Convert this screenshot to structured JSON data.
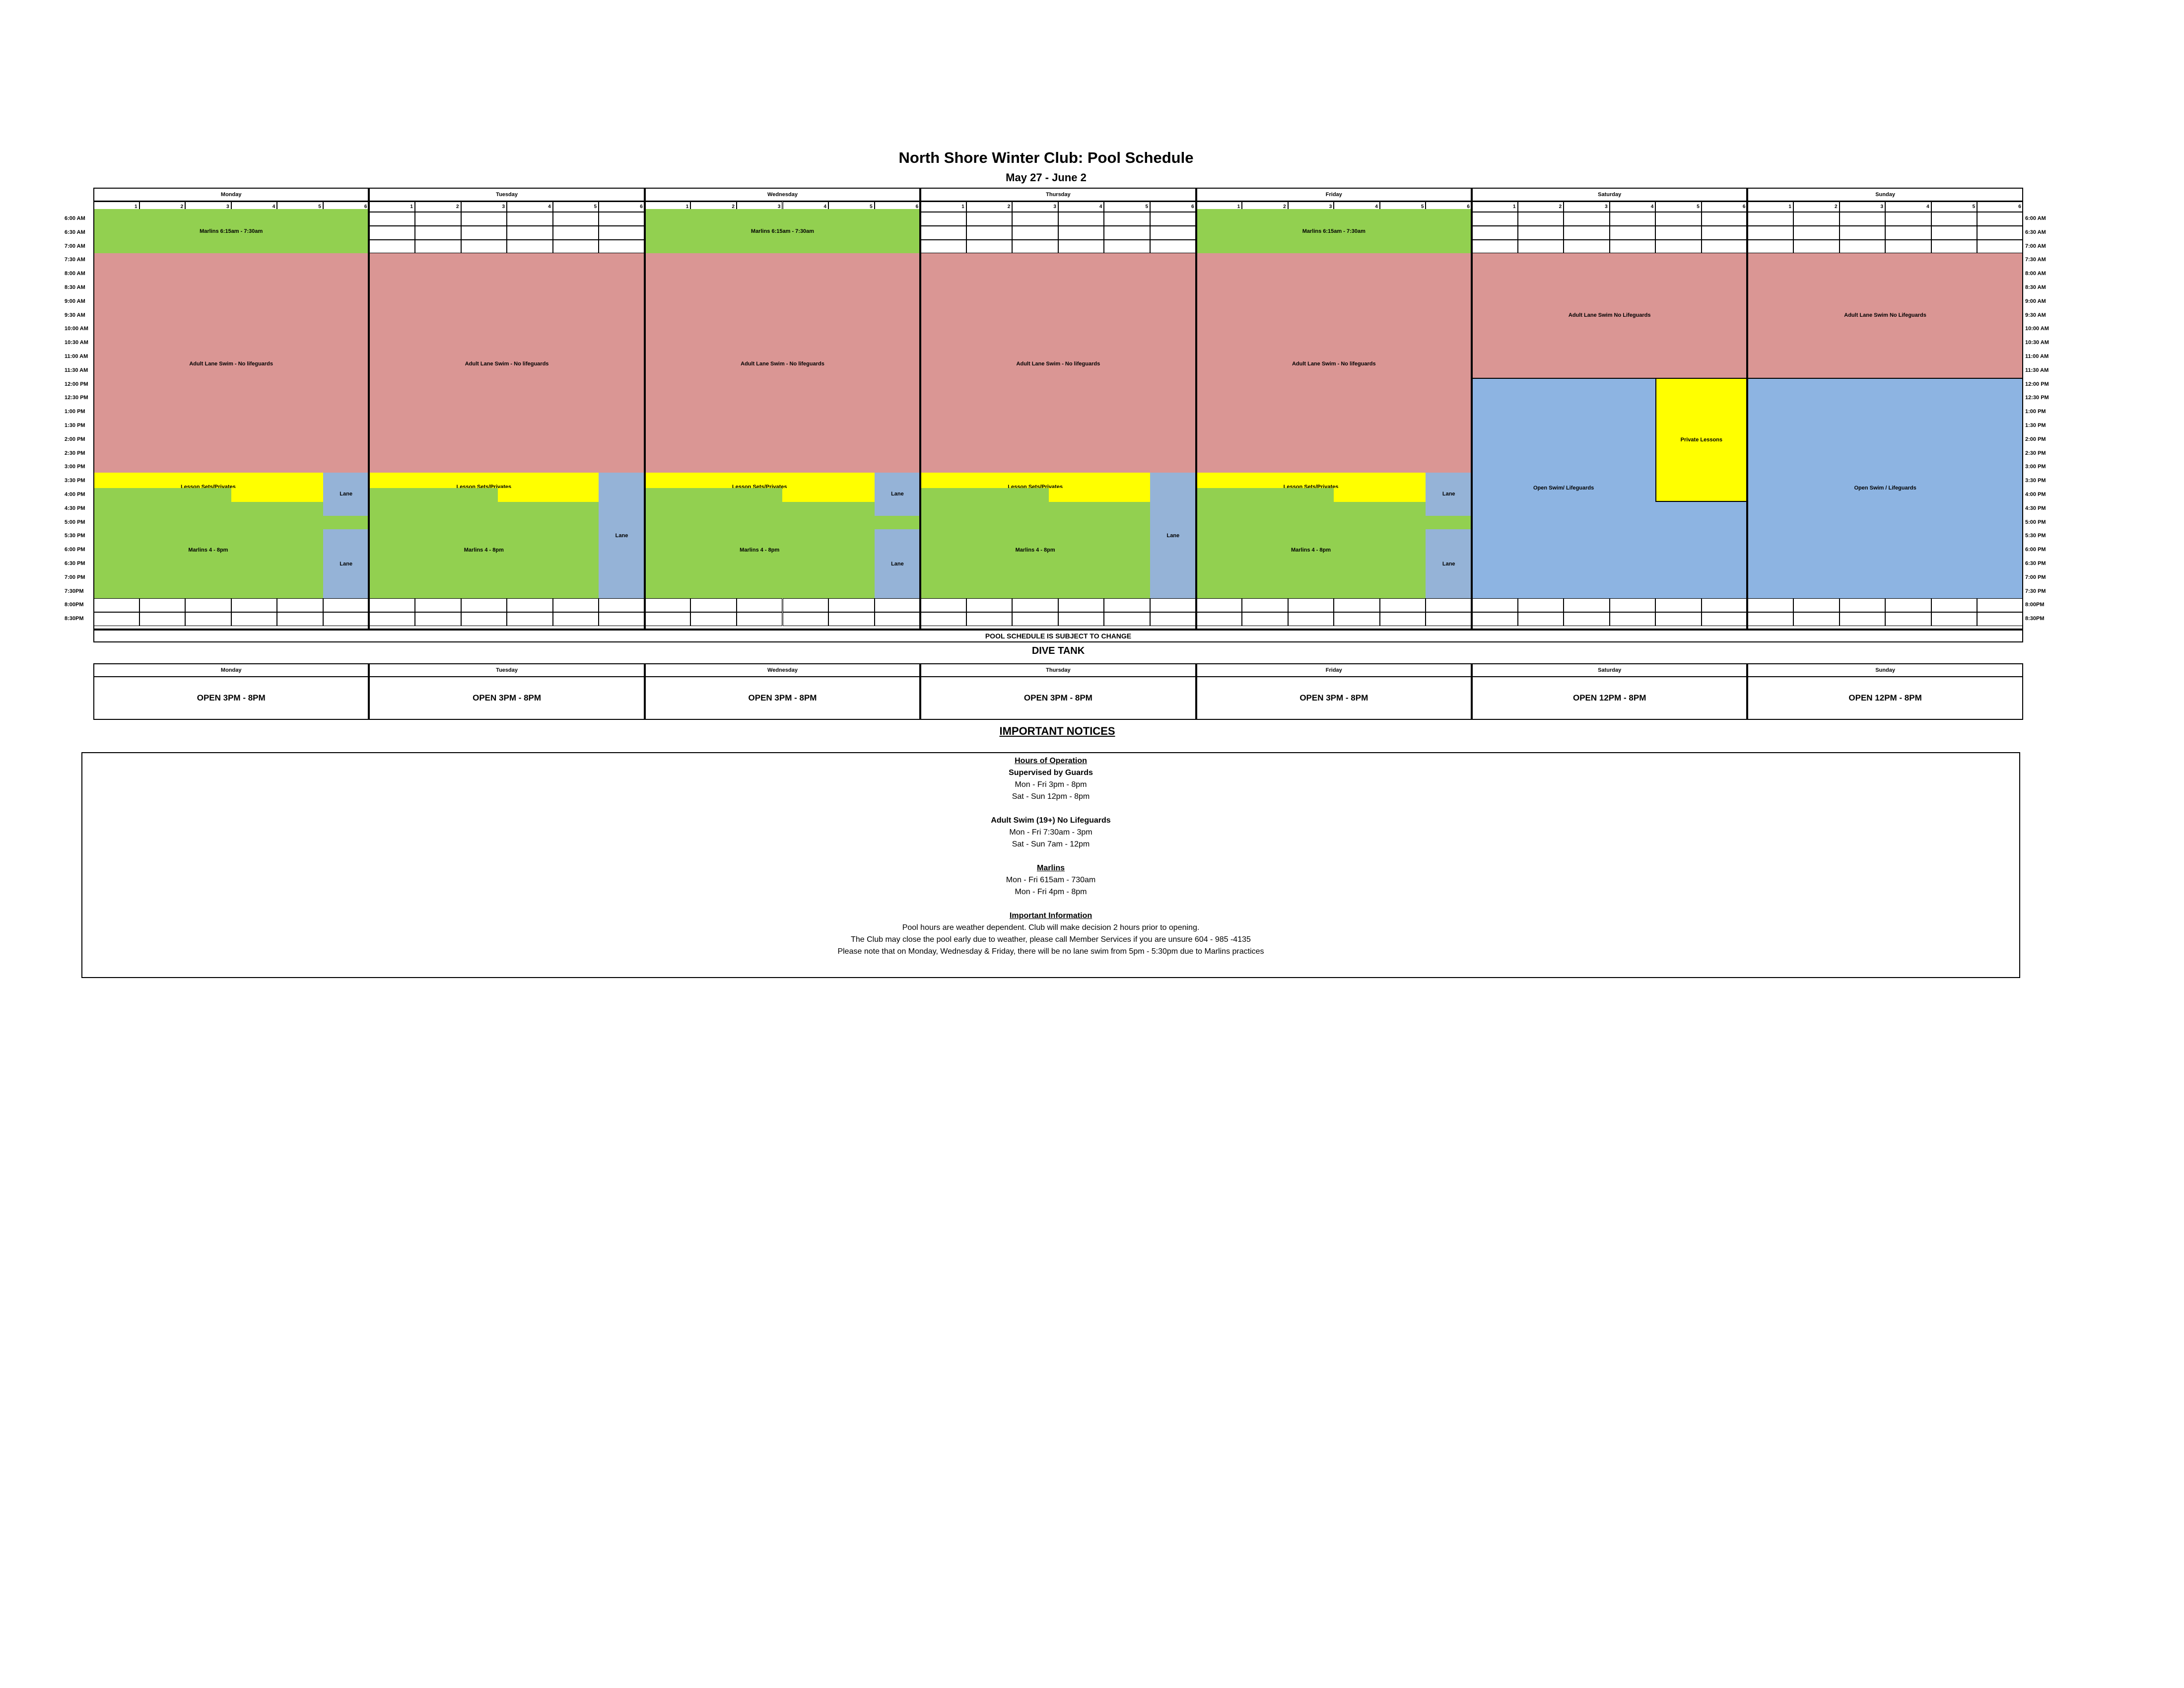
{
  "title": "North Shore Winter Club: Pool Schedule",
  "date_range": "May 27 - June 2",
  "days": [
    "Monday",
    "Tuesday",
    "Wednesday",
    "Thursday",
    "Friday",
    "Saturday",
    "Sunday"
  ],
  "lanes": [
    "1",
    "2",
    "3",
    "4",
    "5",
    "6"
  ],
  "times_left": [
    "6:00 AM",
    "6:30 AM",
    "7:00 AM",
    "7:30 AM",
    "8:00 AM",
    "8:30 AM",
    "9:00 AM",
    "9:30 AM",
    "10:00 AM",
    "10:30 AM",
    "11:00 AM",
    "11:30 AM",
    "12:00 PM",
    "12:30 PM",
    "1:00 PM",
    "1:30 PM",
    "2:00 PM",
    "2:30 PM",
    "3:00 PM",
    "3:30 PM",
    "4:00 PM",
    "4:30 PM",
    "5:00 PM",
    "5:30 PM",
    "6:00 PM",
    "6:30 PM",
    "7:00 PM",
    "7:30PM",
    "8:00PM",
    "8:30PM"
  ],
  "times_right": [
    "6:00 AM",
    "6:30 AM",
    "7:00 AM",
    "7:30 AM",
    "8:00 AM",
    "8:30 AM",
    "9:00 AM",
    "9:30 AM",
    "10:00 AM",
    "10:30 AM",
    "11:00 AM",
    "11:30 AM",
    "12:00 PM",
    "12:30 PM",
    "1:00 PM",
    "1:30 PM",
    "2:00 PM",
    "2:30 PM",
    "3:00 PM",
    "3:30 PM",
    "4:00 PM",
    "4:30 PM",
    "5:00 PM",
    "5:30 PM",
    "6:00 PM",
    "6:30 PM",
    "7:00 PM",
    "7:30 PM",
    "8:00PM",
    "8:30PM"
  ],
  "labels": {
    "marlins_am": "Marlins        6:15am - 7:30am",
    "adult_weekday": "Adult Lane Swim - No lifeguards",
    "adult_weekend": "Adult Lane Swim No Lifeguards",
    "lesson": "Lesson Sets/Privates",
    "lane": "Lane",
    "marlins_pm": "Marlins 4 - 8pm",
    "open_swim_sat": "Open Swim/ Lifeguards",
    "private_lessons": "Private Lessons",
    "open_swim_sun": "Open Swim / Lifeguards"
  },
  "subject_to_change": "POOL SCHEDULE IS SUBJECT TO CHANGE",
  "dive_tank": {
    "title": "DIVE TANK",
    "hours": [
      "OPEN 3PM - 8PM",
      "OPEN 3PM - 8PM",
      "OPEN 3PM - 8PM",
      "OPEN 3PM - 8PM",
      "OPEN 3PM - 8PM",
      "OPEN 12PM - 8PM",
      "OPEN 12PM - 8PM"
    ]
  },
  "notices": {
    "title": "IMPORTANT NOTICES",
    "hours_heading": "Hours of Operation",
    "supervised": "Supervised by Guards",
    "sup_weekday": "Mon - Fri 3pm - 8pm",
    "sup_weekend": "Sat - Sun 12pm - 8pm",
    "adult_heading": "Adult Swim (19+) No Lifeguards",
    "adult_weekday": "Mon - Fri 7:30am - 3pm",
    "adult_weekend": "Sat - Sun 7am - 12pm",
    "marlins_heading": "Marlins",
    "marlins_am": "Mon - Fri 615am - 730am",
    "marlins_pm": "Mon - Fri 4pm - 8pm",
    "info_heading": "Important Information",
    "info_1": "Pool hours are weather dependent. Club will make decision 2 hours prior to opening.",
    "info_2": "The Club may close the pool early due to weather, please call Member Services if you are unsure 604 - 985 -4135",
    "info_3": "Please note that on Monday, Wednesday & Friday, there will be no lane swim from 5pm - 5:30pm due to Marlins practices"
  },
  "colors": {
    "marlins": "#92d050",
    "adult_swim": "#da9694",
    "lessons": "#ffff00",
    "lane": "#95b3d7",
    "open_swim": "#8db4e2"
  }
}
